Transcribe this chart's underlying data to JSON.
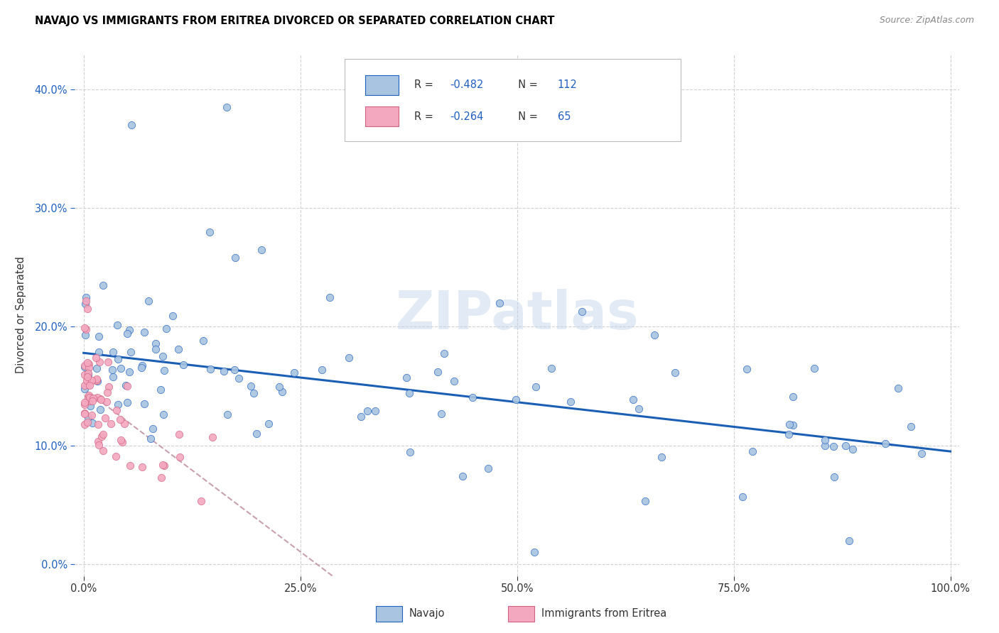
{
  "title": "NAVAJO VS IMMIGRANTS FROM ERITREA DIVORCED OR SEPARATED CORRELATION CHART",
  "source": "Source: ZipAtlas.com",
  "ylabel": "Divorced or Separated",
  "navajo_R": -0.482,
  "navajo_N": 112,
  "eritrea_R": -0.264,
  "eritrea_N": 65,
  "navajo_color": "#a8c4e0",
  "navajo_edge_color": "#2060c0",
  "eritrea_color": "#f4a8c0",
  "eritrea_edge_color": "#d06080",
  "navajo_line_color": "#1a5fb4",
  "eritrea_line_color": "#c8a0b0",
  "watermark": "ZIPatlas",
  "navajo_line_intercept": 0.178,
  "navajo_line_slope": -0.083,
  "eritrea_line_intercept": 0.148,
  "eritrea_line_slope": -0.55,
  "xlim": [
    0.0,
    1.0
  ],
  "ylim": [
    0.0,
    0.42
  ],
  "xticks": [
    0.0,
    0.25,
    0.5,
    0.75,
    1.0
  ],
  "yticks": [
    0.0,
    0.1,
    0.2,
    0.3,
    0.4
  ],
  "navajo_seed": 7,
  "eritrea_seed": 13
}
